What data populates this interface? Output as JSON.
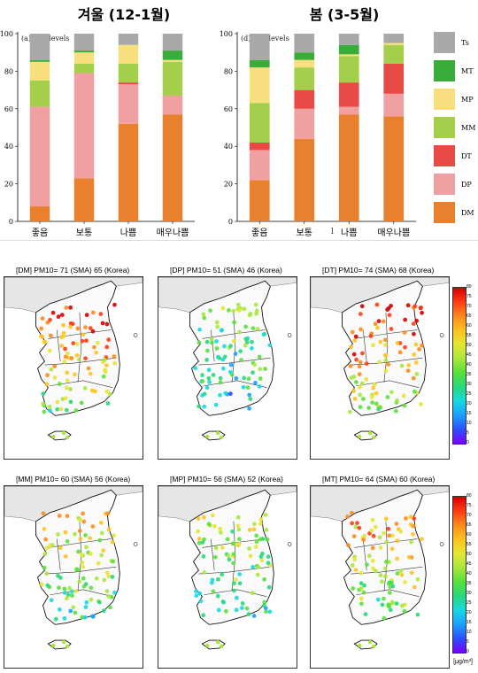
{
  "chart_data": [
    {
      "type": "bar",
      "stacked": true,
      "title": "겨울 (12-1월)",
      "panel_label": "(a) CAI levels",
      "categories": [
        "좋음",
        "보통",
        "나쁨",
        "매우나쁨"
      ],
      "ylim": [
        0,
        100
      ],
      "yticks": [
        0,
        20,
        40,
        60,
        80,
        100
      ],
      "series": [
        {
          "name": "DM",
          "values": [
            8,
            23,
            52,
            57
          ]
        },
        {
          "name": "DP",
          "values": [
            53,
            56,
            21,
            10
          ]
        },
        {
          "name": "DT",
          "values": [
            0,
            0,
            1,
            0
          ]
        },
        {
          "name": "MM",
          "values": [
            14,
            5,
            10,
            18
          ]
        },
        {
          "name": "MP",
          "values": [
            10,
            6,
            10,
            1
          ]
        },
        {
          "name": "MT",
          "values": [
            1,
            1,
            0,
            5
          ]
        },
        {
          "name": "Ts",
          "values": [
            14,
            9,
            6,
            9
          ]
        }
      ]
    },
    {
      "type": "bar",
      "stacked": true,
      "title": "봄 (3-5월)",
      "panel_label": "(d) CAI levels",
      "categories": [
        "좋음",
        "보통",
        "나쁨",
        "매우나쁨"
      ],
      "ylim": [
        0,
        100
      ],
      "yticks": [
        0,
        20,
        40,
        60,
        80,
        100
      ],
      "series": [
        {
          "name": "DM",
          "values": [
            22,
            44,
            57,
            56
          ]
        },
        {
          "name": "DP",
          "values": [
            16,
            16,
            4,
            12
          ]
        },
        {
          "name": "DT",
          "values": [
            4,
            10,
            13,
            16
          ]
        },
        {
          "name": "MM",
          "values": [
            21,
            12,
            14,
            10
          ]
        },
        {
          "name": "MP",
          "values": [
            19,
            4,
            1,
            1
          ]
        },
        {
          "name": "MT",
          "values": [
            4,
            4,
            5,
            0
          ]
        },
        {
          "name": "Ts",
          "values": [
            14,
            10,
            6,
            5
          ]
        }
      ]
    }
  ],
  "stray_mark": "l",
  "legend": [
    {
      "name": "Ts",
      "color": "#a9a9a9"
    },
    {
      "name": "MT",
      "color": "#3aac3a"
    },
    {
      "name": "MP",
      "color": "#f6df7c"
    },
    {
      "name": "MM",
      "color": "#a3cf4a"
    },
    {
      "name": "DT",
      "color": "#e84a45"
    },
    {
      "name": "DP",
      "color": "#f0a0a0"
    },
    {
      "name": "DM",
      "color": "#e8802e"
    }
  ],
  "maps": [
    {
      "title": "[DM] PM10= 71 (SMA) 65 (Korea)",
      "intensity": 0.85
    },
    {
      "title": "[DP] PM10= 51 (SMA) 46 (Korea)",
      "intensity": 0.45
    },
    {
      "title": "[DT] PM10= 74 (SMA) 68 (Korea)",
      "intensity": 0.9
    },
    {
      "title": "[MM] PM10= 60 (SMA) 56 (Korea)",
      "intensity": 0.65
    },
    {
      "title": "[MP] PM10= 56 (SMA) 52 (Korea)",
      "intensity": 0.55
    },
    {
      "title": "[MT] PM10= 64 (SMA) 60 (Korea)",
      "intensity": 0.7
    }
  ],
  "colorbar": {
    "ticks": [
      "80",
      "75",
      "70",
      "65",
      "60",
      "55",
      "50",
      "45",
      "40",
      "35",
      "30",
      "25",
      "20",
      "15",
      "10",
      "5",
      "0"
    ],
    "unit": "[μg/m³]"
  }
}
